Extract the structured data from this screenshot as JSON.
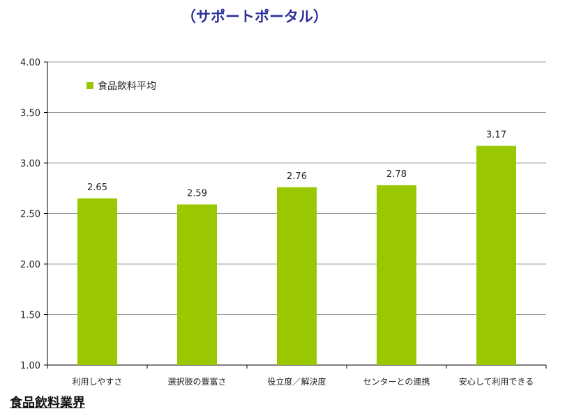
{
  "header": {
    "title": "（サポートポータル）"
  },
  "footer": {
    "label": "食品飲料業界"
  },
  "colors": {
    "bar": "#99c700",
    "grid": "#999999",
    "axis": "#000000"
  },
  "chart_data": {
    "type": "bar",
    "title": "（サポートポータル）",
    "categories": [
      "利用しやすさ",
      "選択肢の豊富さ",
      "役立度／解決度",
      "センターとの連携",
      "安心して利用できる"
    ],
    "series": [
      {
        "name": "食品飲料平均",
        "values": [
          2.65,
          2.59,
          2.76,
          2.78,
          3.17
        ]
      }
    ],
    "data_labels": [
      "2.65",
      "2.59",
      "2.76",
      "2.78",
      "3.17"
    ],
    "yticks": [
      "1.00",
      "1.50",
      "2.00",
      "2.50",
      "3.00",
      "3.50",
      "4.00"
    ],
    "ylim": [
      1.0,
      4.0
    ],
    "xlabel": "",
    "ylabel": "",
    "grid": true,
    "legend_position": "top-left"
  }
}
